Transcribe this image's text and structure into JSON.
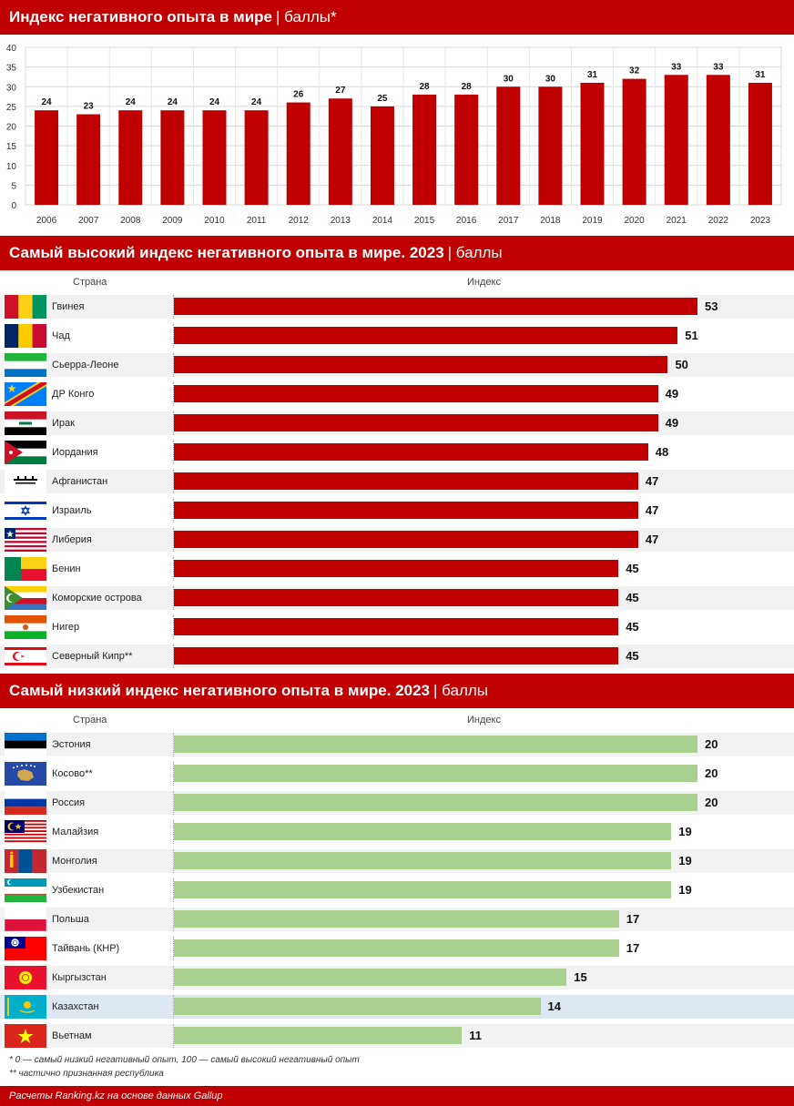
{
  "section1": {
    "title": "Индекс негативного опыта в мире",
    "unit": "баллы*"
  },
  "section2": {
    "title": "Самый высокий индекс негативного опыта в мире. 2023",
    "unit": "баллы",
    "col_country": "Страна",
    "col_index": "Индекс"
  },
  "section3": {
    "title": "Самый низкий индекс негативного опыта в мире. 2023",
    "unit": "баллы",
    "col_country": "Страна",
    "col_index": "Индекс"
  },
  "notes": {
    "note1": "* 0 — самый низкий негативный опыт, 100 — самый высокий негативный опыт",
    "note2": "** частично признанная республика"
  },
  "footer": {
    "source": "Расчеты Ranking.kz на основе данных Gallup"
  },
  "colors": {
    "accent": "#c00000",
    "low_bar": "#a9d08e",
    "highlight_row": "#dde8f3",
    "alt_row": "#f2f2f2"
  },
  "chart_data": [
    {
      "type": "bar",
      "title": "Индекс негативного опыта в мире | баллы*",
      "categories": [
        "2006",
        "2007",
        "2008",
        "2009",
        "2010",
        "2011",
        "2012",
        "2013",
        "2014",
        "2015",
        "2016",
        "2017",
        "2018",
        "2019",
        "2020",
        "2021",
        "2022",
        "2023"
      ],
      "values": [
        24,
        23,
        24,
        24,
        24,
        24,
        26,
        27,
        25,
        28,
        28,
        30,
        30,
        31,
        32,
        33,
        33,
        31
      ],
      "ylim": [
        0,
        40
      ],
      "yticks": [
        0,
        5,
        10,
        15,
        20,
        25,
        30,
        35,
        40
      ],
      "grid": true,
      "bar_color": "#c00000"
    },
    {
      "type": "bar",
      "orientation": "horizontal",
      "title": "Самый высокий индекс негативного опыта в мире. 2023 | баллы",
      "categories": [
        "Гвинея",
        "Чад",
        "Сьерра-Леоне",
        "ДР Конго",
        "Ирак",
        "Иордания",
        "Афганистан",
        "Израиль",
        "Либерия",
        "Бенин",
        "Коморские острова",
        "Нигер",
        "Северный Кипр**"
      ],
      "values": [
        53,
        51,
        50,
        49,
        49,
        48,
        47,
        47,
        47,
        45,
        45,
        45,
        45
      ],
      "flags": [
        "guinea-flag",
        "chad-flag",
        "sierra-leone-flag",
        "dr-congo-flag",
        "iraq-flag",
        "jordan-flag",
        "afghanistan-flag",
        "israel-flag",
        "liberia-flag",
        "benin-flag",
        "comoros-flag",
        "niger-flag",
        "northern-cyprus-flag"
      ],
      "bar_color": "#c00000"
    },
    {
      "type": "bar",
      "orientation": "horizontal",
      "title": "Самый низкий индекс негативного опыта в мире. 2023 | баллы",
      "categories": [
        "Эстония",
        "Косово**",
        "Россия",
        "Малайзия",
        "Монголия",
        "Узбекистан",
        "Польша",
        "Тайвань (КНР)",
        "Кыргызстан",
        "Казахстан",
        "Вьетнам"
      ],
      "values": [
        20,
        20,
        20,
        19,
        19,
        19,
        17,
        17,
        15,
        14,
        11
      ],
      "flags": [
        "estonia-flag",
        "kosovo-flag",
        "russia-flag",
        "malaysia-flag",
        "mongolia-flag",
        "uzbekistan-flag",
        "poland-flag",
        "taiwan-flag",
        "kyrgyzstan-flag",
        "kazakhstan-flag",
        "vietnam-flag"
      ],
      "highlight": "Казахстан",
      "bar_color": "#a9d08e"
    }
  ]
}
